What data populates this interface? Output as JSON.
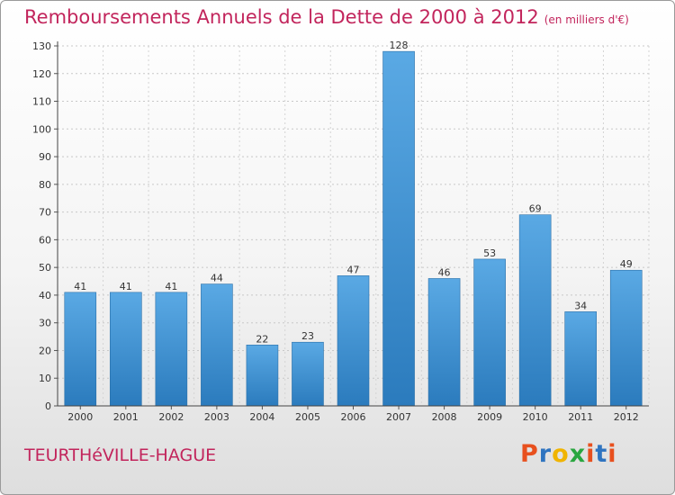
{
  "header": {
    "title": "Remboursements Annuels de la Dette de 2000 à 2012",
    "unit": "(en milliers d'€)"
  },
  "footer": {
    "city": "TEURTHéVILLE-HAGUE",
    "logo_letters": [
      "P",
      "r",
      "o",
      "x",
      "i",
      "t",
      "i"
    ]
  },
  "colors": {
    "title": "#c2255c",
    "bar_light": "#5aa9e4",
    "bar_dark": "#2b7bbd",
    "logo": [
      "#e8501e",
      "#2f74c0",
      "#f0b400",
      "#2aa640",
      "#e8501e",
      "#2f74c0",
      "#e8501e"
    ]
  },
  "chart_data": {
    "type": "bar",
    "title": "Remboursements Annuels de la Dette de 2000 à 2012",
    "xlabel": "",
    "ylabel": "",
    "categories": [
      "2000",
      "2001",
      "2002",
      "2003",
      "2004",
      "2005",
      "2006",
      "2007",
      "2008",
      "2009",
      "2010",
      "2011",
      "2012"
    ],
    "values": [
      41,
      41,
      41,
      44,
      22,
      23,
      47,
      128,
      46,
      53,
      69,
      34,
      49
    ],
    "ylim": [
      0,
      130
    ],
    "yticks": [
      0,
      10,
      20,
      30,
      40,
      50,
      60,
      70,
      80,
      90,
      100,
      110,
      120,
      130
    ],
    "grid": true
  }
}
